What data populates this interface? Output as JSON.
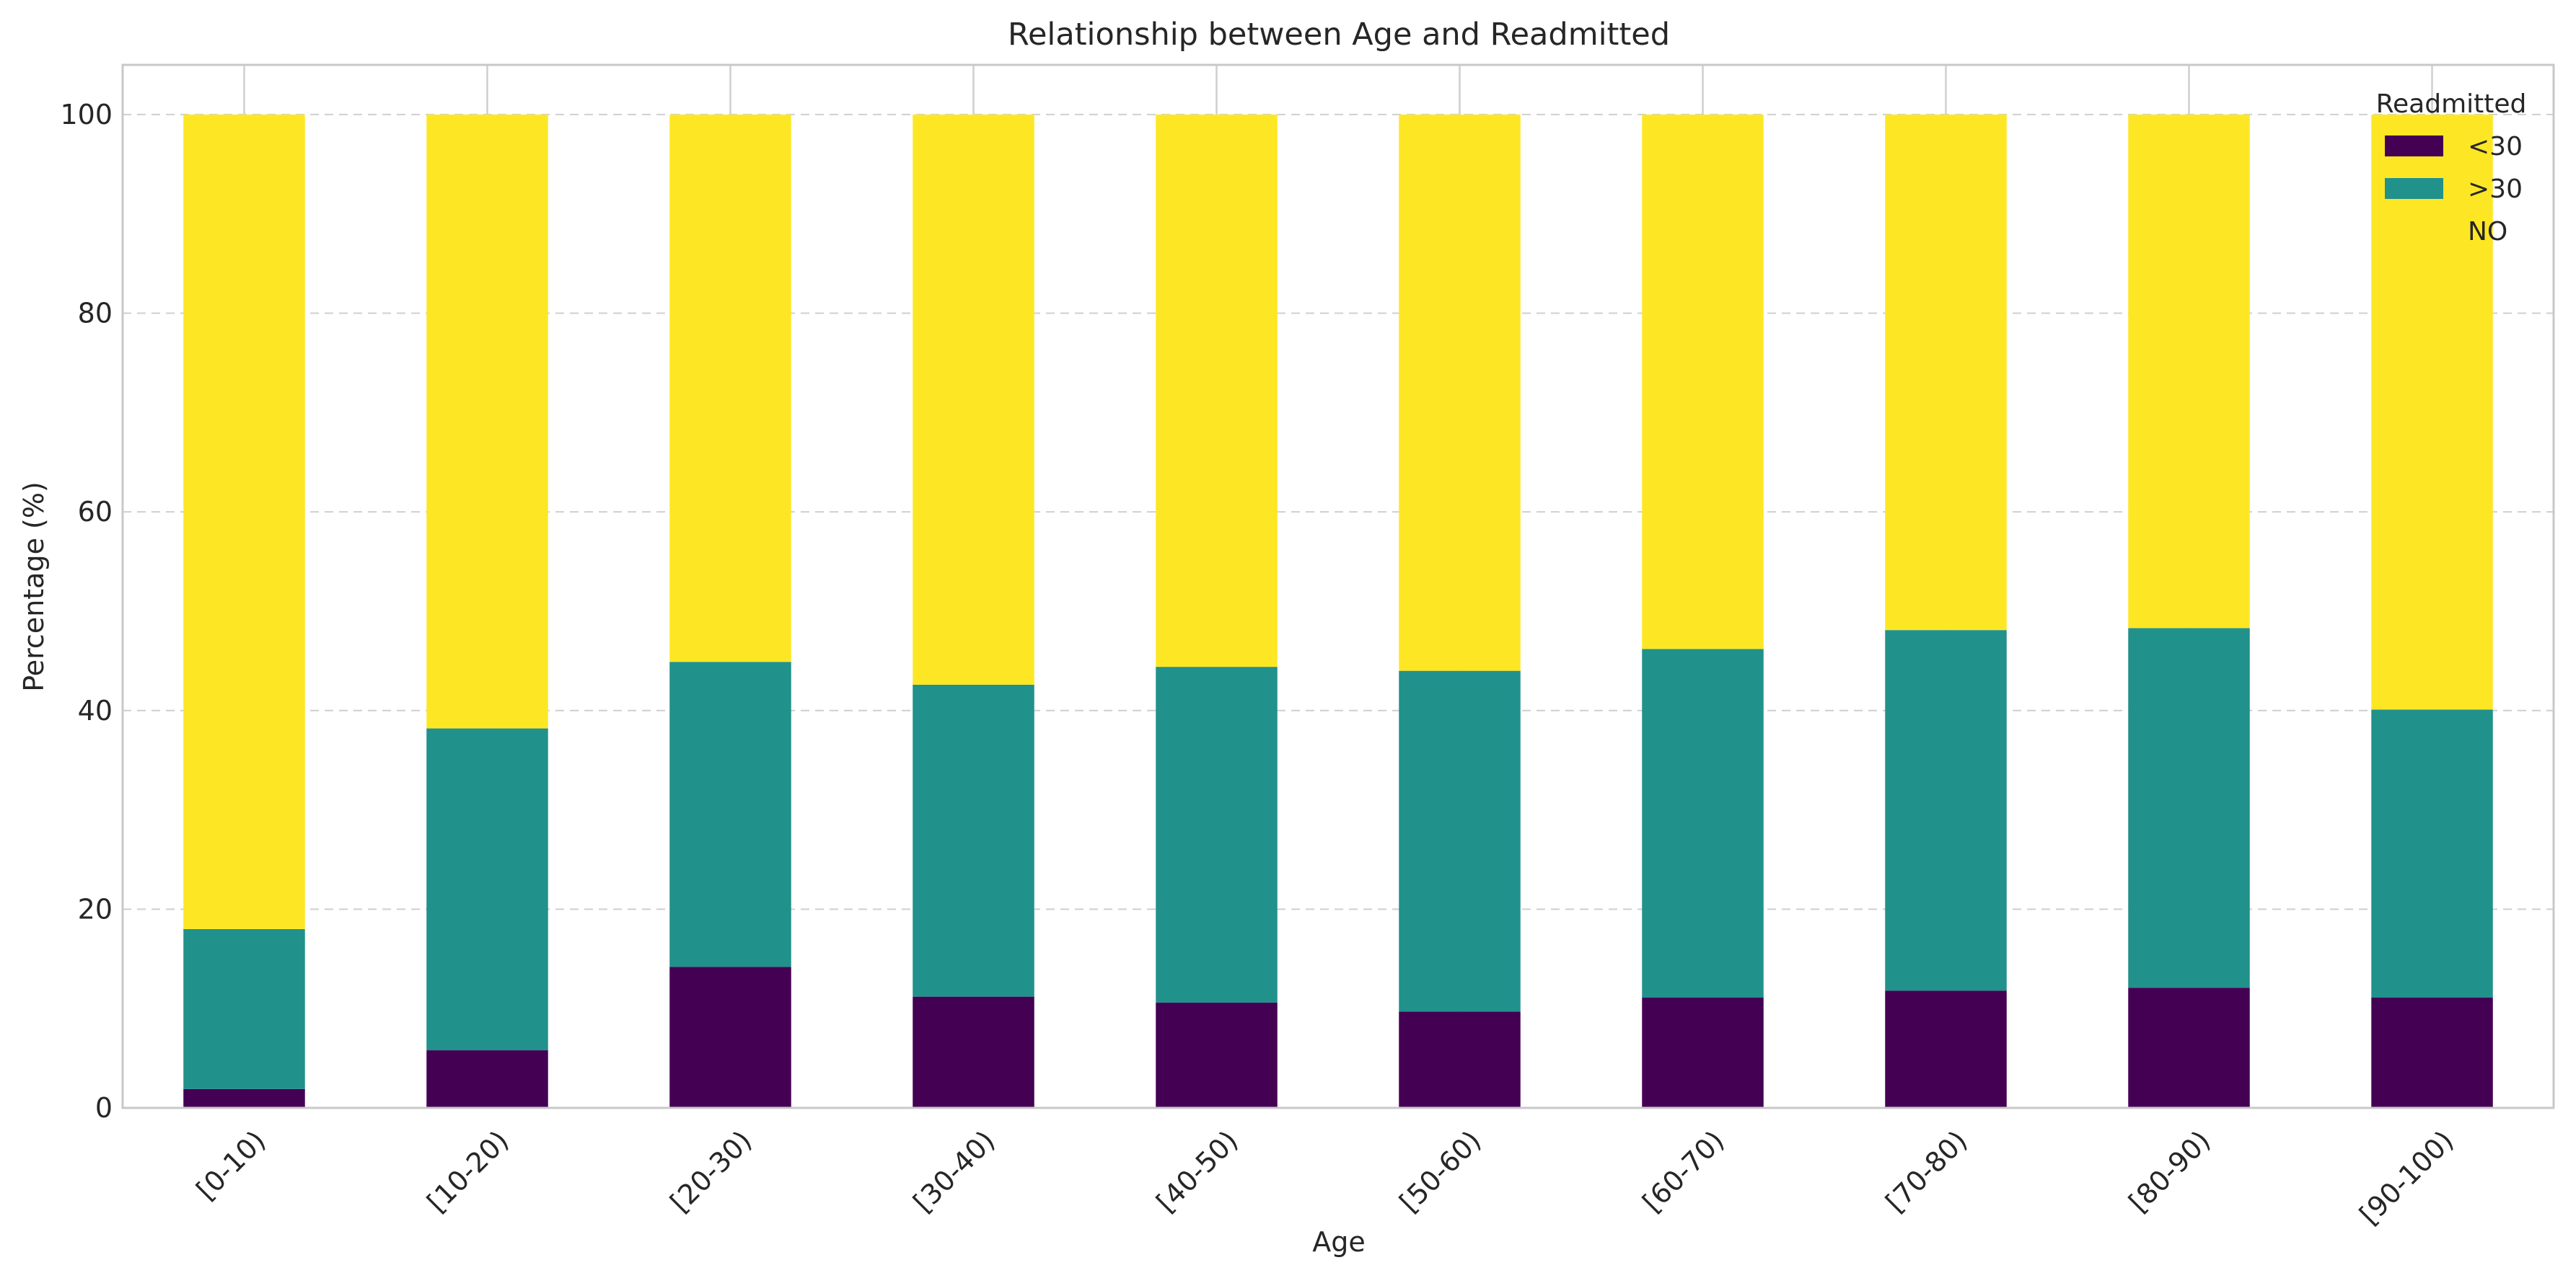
{
  "chart_data": {
    "type": "bar",
    "stacked": true,
    "title": "Relationship between Age and Readmitted",
    "xlabel": "Age",
    "ylabel": "Percentage (%)",
    "ylim": [
      0,
      105
    ],
    "yticks": [
      0,
      20,
      40,
      60,
      80,
      100
    ],
    "grid": "y-dashed",
    "categories": [
      "[0-10)",
      "[10-20)",
      "[20-30)",
      "[30-40)",
      "[40-50)",
      "[50-60)",
      "[60-70)",
      "[70-80)",
      "[80-90)",
      "[90-100)"
    ],
    "legend": {
      "title": "Readmitted",
      "placement": "top-right"
    },
    "series": [
      {
        "name": "<30",
        "color": "#440154",
        "values": [
          1.9,
          5.8,
          14.2,
          11.2,
          10.6,
          9.7,
          11.1,
          11.8,
          12.1,
          11.1
        ]
      },
      {
        "name": ">30",
        "color": "#21918c",
        "values": [
          16.1,
          32.4,
          30.7,
          31.4,
          33.8,
          34.3,
          35.1,
          36.3,
          36.2,
          29.0
        ]
      },
      {
        "name": "NO",
        "color": "#fde725",
        "values": [
          82.0,
          61.8,
          55.1,
          57.4,
          55.6,
          56.0,
          53.8,
          51.9,
          51.7,
          59.9
        ]
      }
    ]
  }
}
